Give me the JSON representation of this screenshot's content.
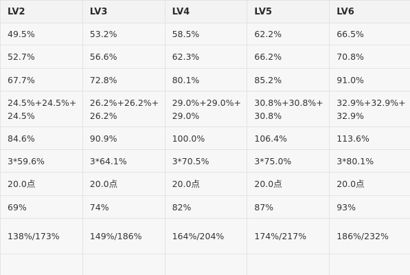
{
  "table": {
    "headers": [
      "LV2",
      "LV3",
      "LV4",
      "LV5",
      "LV6"
    ],
    "rows": [
      [
        "49.5%",
        "53.2%",
        "58.5%",
        "62.2%",
        "66.5%"
      ],
      [
        "52.7%",
        "56.6%",
        "62.3%",
        "66.2%",
        "70.8%"
      ],
      [
        "67.7%",
        "72.8%",
        "80.1%",
        "85.2%",
        "91.0%"
      ],
      [
        "24.5%+24.5%+24.5%",
        "26.2%+26.2%+26.2%",
        "29.0%+29.0%+29.0%",
        "30.8%+30.8%+30.8%",
        "32.9%+32.9%+32.9%"
      ],
      [
        "84.6%",
        "90.9%",
        "100.0%",
        "106.4%",
        "113.6%"
      ],
      [
        "3*59.6%",
        "3*64.1%",
        "3*70.5%",
        "3*75.0%",
        "3*80.1%"
      ],
      [
        "20.0点",
        "20.0点",
        "20.0点",
        "20.0点",
        "20.0点"
      ],
      [
        "69%",
        "74%",
        "82%",
        "87%",
        "93%"
      ],
      [
        "138%/173%",
        "149%/186%",
        "164%/204%",
        "174%/217%",
        "186%/232%"
      ],
      [
        "",
        "",
        "",
        "",
        ""
      ]
    ]
  }
}
